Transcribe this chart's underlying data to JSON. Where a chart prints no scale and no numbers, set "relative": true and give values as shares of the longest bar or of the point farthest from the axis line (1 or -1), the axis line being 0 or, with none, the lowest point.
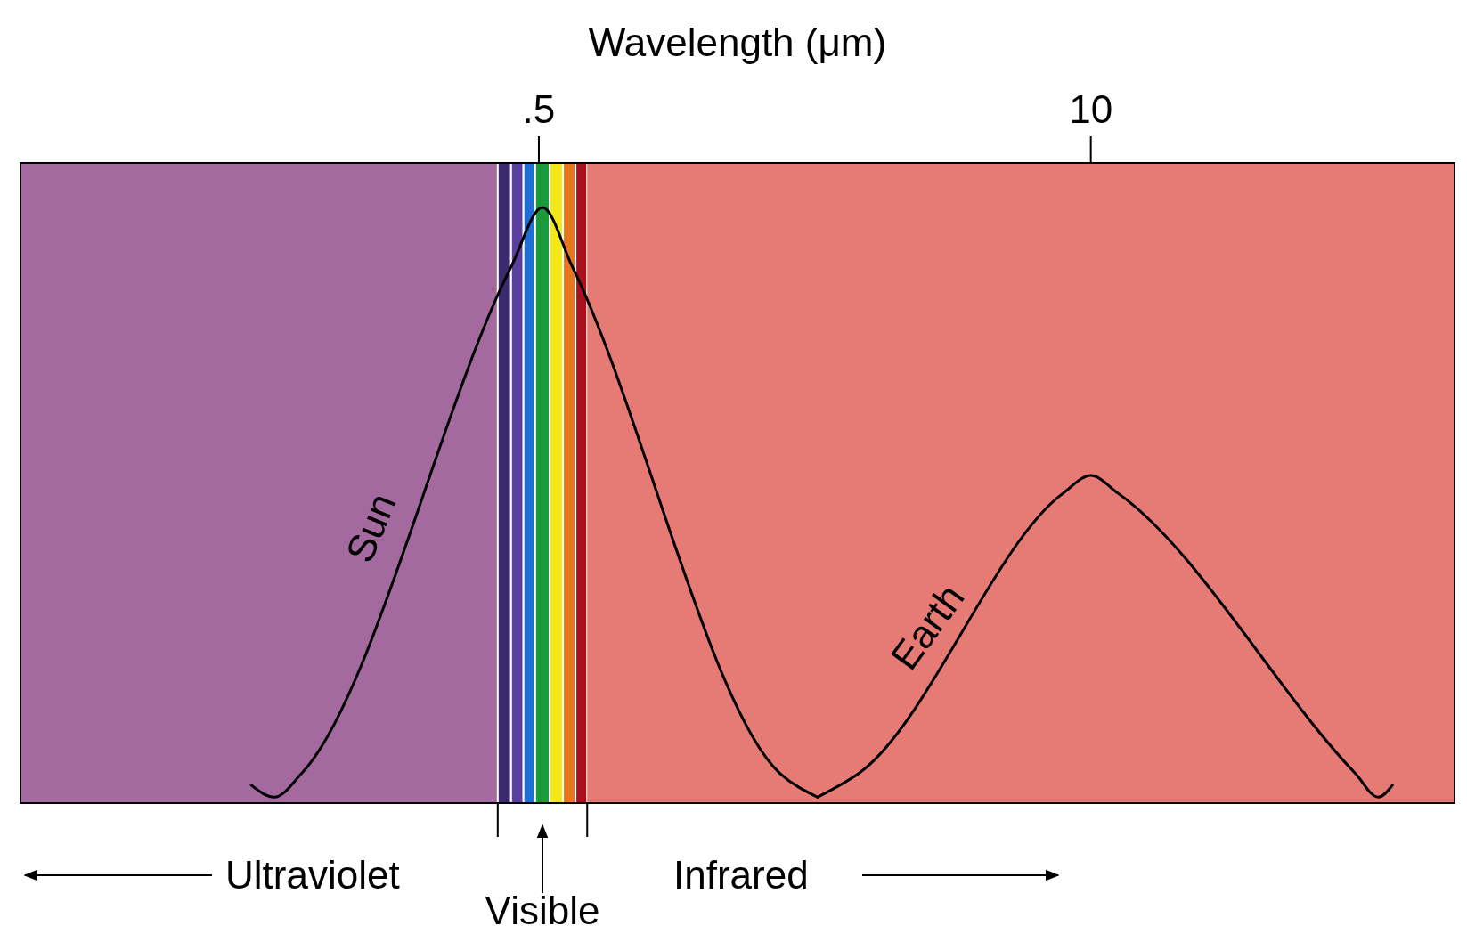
{
  "chart_data": {
    "type": "line",
    "xlabel": "Wavelength (μm)",
    "log": "x",
    "relative": true,
    "xlim": [
      0.03,
      72
    ],
    "xticks": [
      {
        "value": 0.5,
        "label": ".5"
      },
      10
    ],
    "bands": [
      {
        "axis": "x",
        "from": 0.03,
        "to": 0.4,
        "color": "#a46aa0"
      },
      {
        "axis": "x",
        "from": 0.4,
        "to": 0.43,
        "color": "#3b2a6e"
      },
      {
        "axis": "x",
        "from": 0.43,
        "to": 0.46,
        "color": "#5b3fa0"
      },
      {
        "axis": "x",
        "from": 0.46,
        "to": 0.49,
        "color": "#1f6fd0"
      },
      {
        "axis": "x",
        "from": 0.49,
        "to": 0.53,
        "color": "#1a9a3a"
      },
      {
        "axis": "x",
        "from": 0.53,
        "to": 0.57,
        "color": "#f5e81a"
      },
      {
        "axis": "x",
        "from": 0.57,
        "to": 0.61,
        "color": "#e8761e"
      },
      {
        "axis": "x",
        "from": 0.61,
        "to": 0.65,
        "color": "#a8101a"
      },
      {
        "axis": "x",
        "from": 0.65,
        "to": 72,
        "color": "#e57b74"
      }
    ],
    "series": [
      {
        "name": "Sun",
        "color": "#000000",
        "x": [
          0.105,
          0.119,
          0.138,
          0.43,
          0.51,
          0.6,
          1.85,
          2.27
        ],
        "values": [
          0.03,
          0.01,
          0.05,
          0.9,
          1,
          0.9,
          0.05,
          0.01
        ]
      },
      {
        "name": "Earth",
        "color": "#000000",
        "x": [
          2.27,
          2.84,
          8.6,
          10,
          11.6,
          42,
          47.6,
          51.4
        ],
        "values": [
          0.01,
          0.05,
          0.52,
          0.55,
          0.52,
          0.05,
          0.01,
          0.03
        ]
      }
    ],
    "annotations": [
      "Ultraviolet",
      "Visible",
      "Infrared"
    ]
  }
}
